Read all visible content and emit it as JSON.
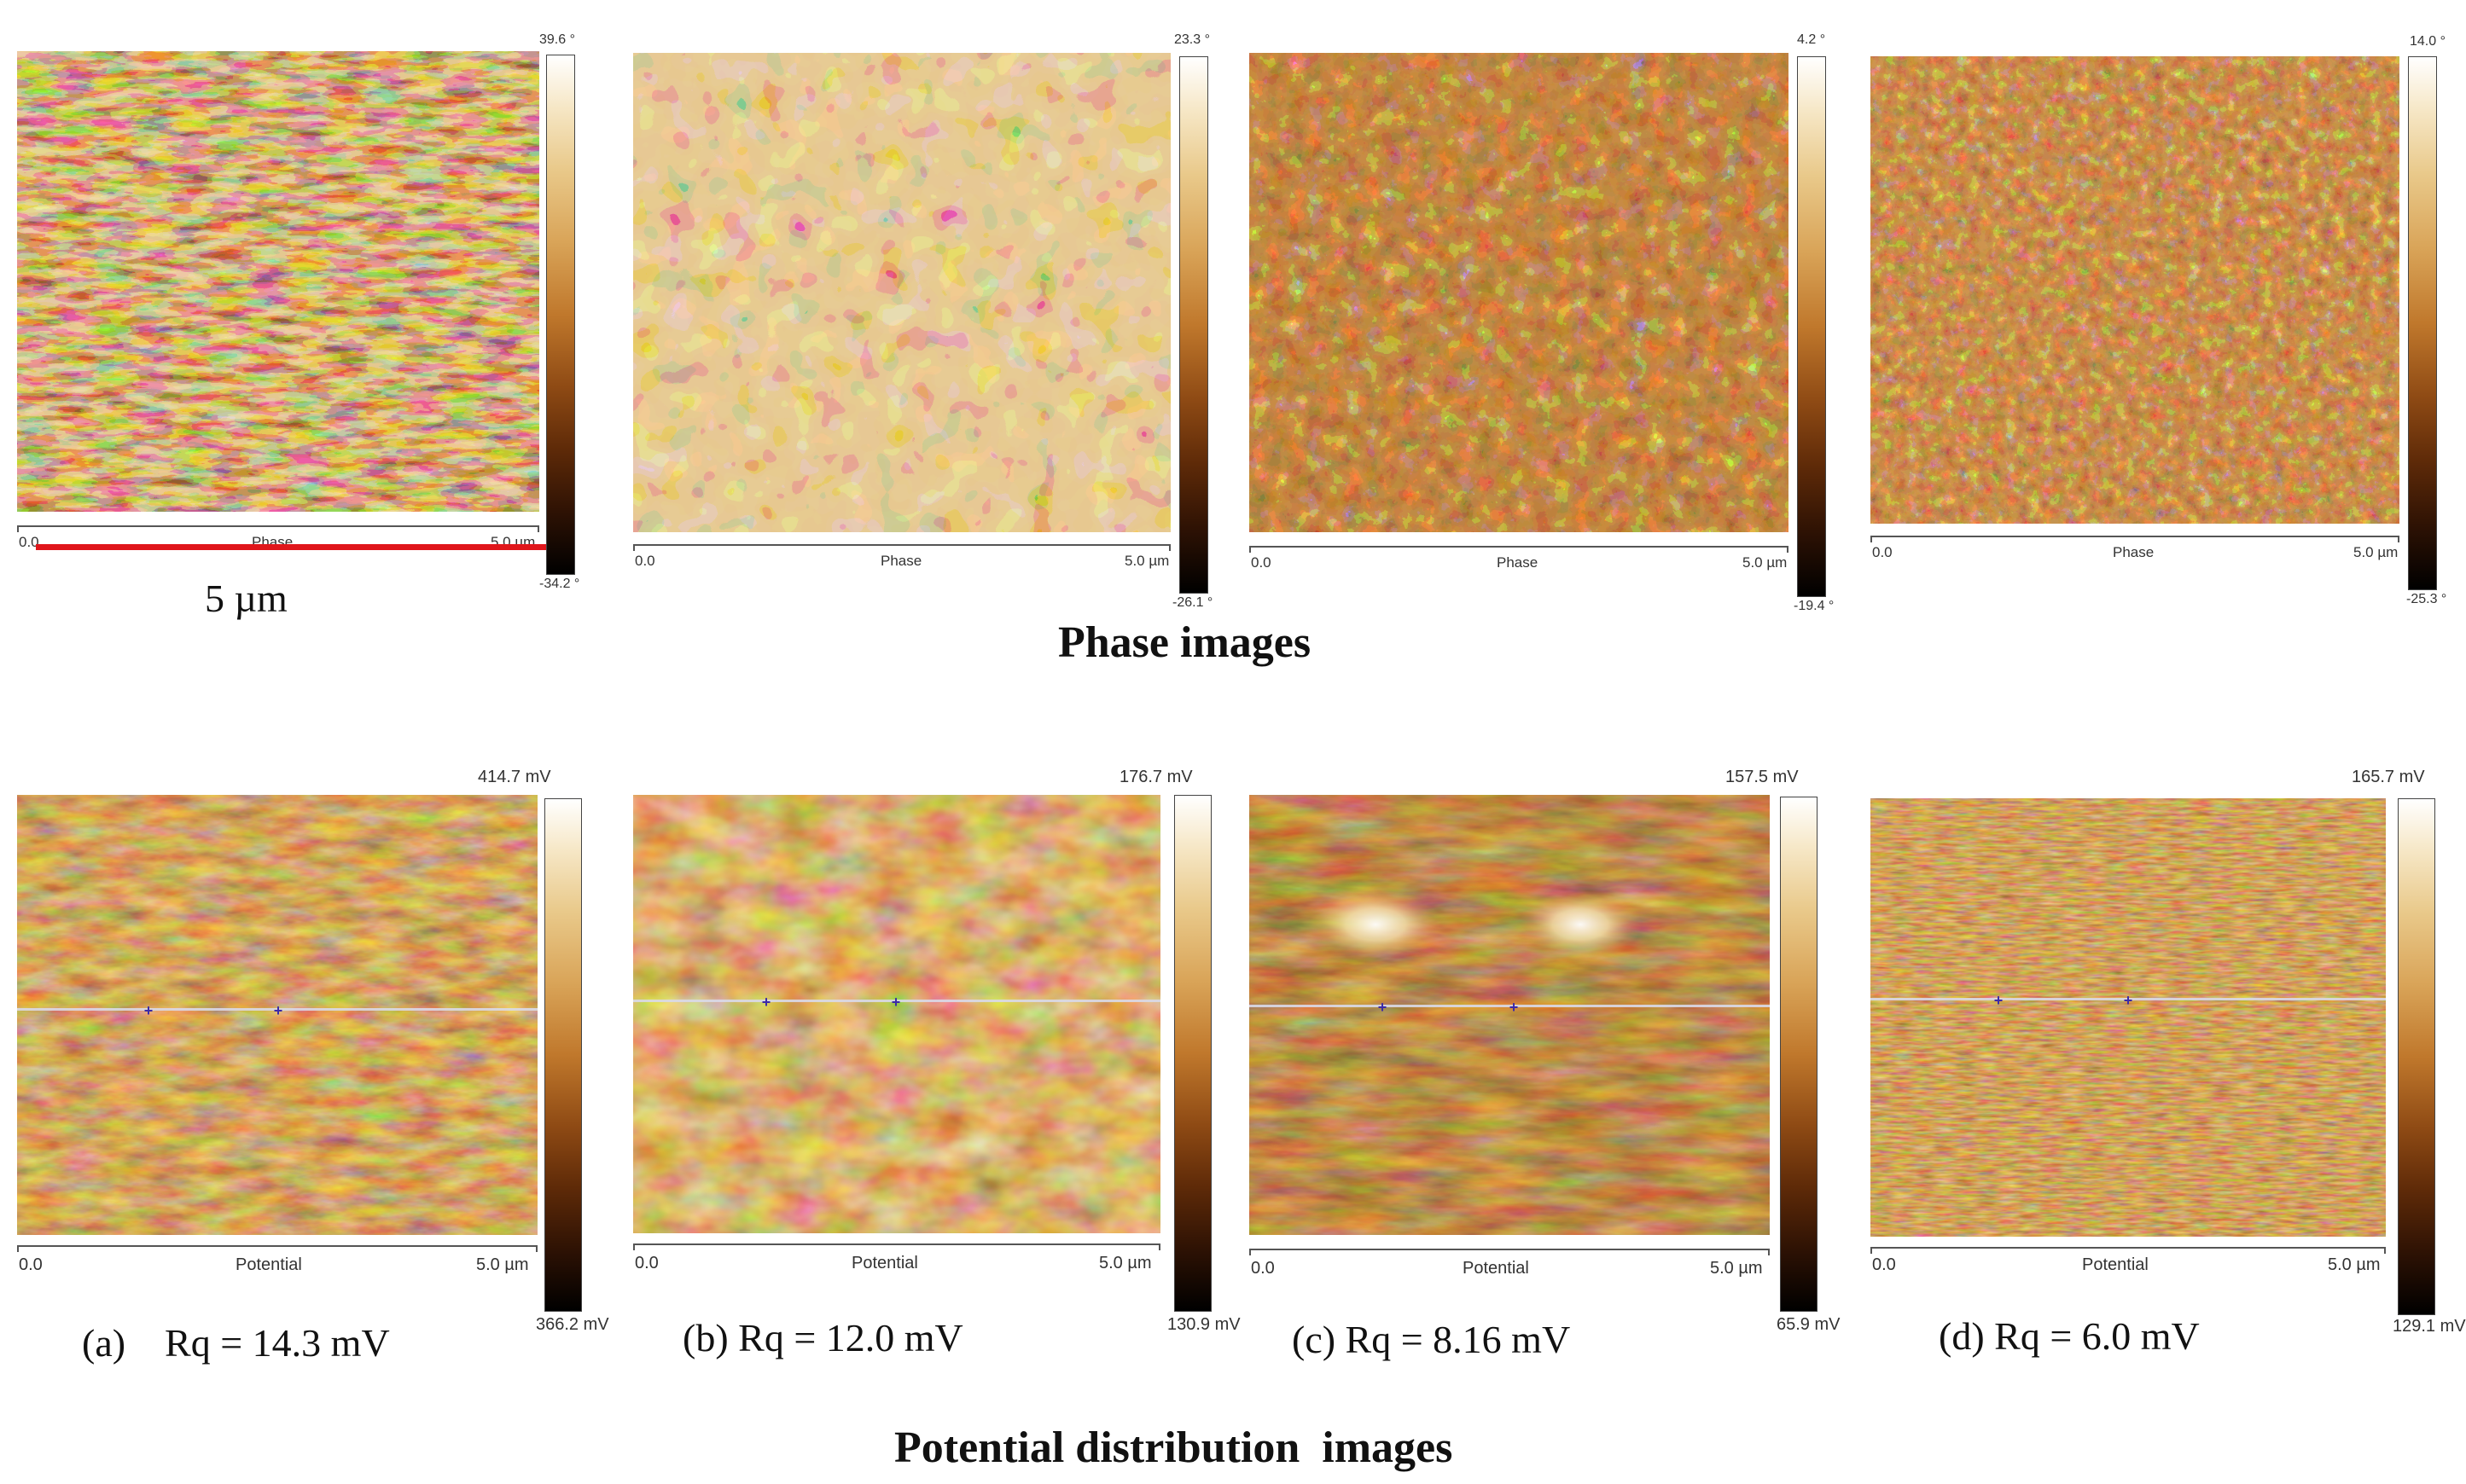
{
  "scale_bar_label": "5 µm",
  "section_titles": {
    "phase": "Phase images",
    "potential": "Potential distribution  images"
  },
  "phase_panels": [
    {
      "axis_start": "0.0",
      "axis_mid": "Phase",
      "axis_end": "5.0 µm",
      "cbar_max": "39.6 °",
      "cbar_min": "-34.2 °"
    },
    {
      "axis_start": "0.0",
      "axis_mid": "Phase",
      "axis_end": "5.0 µm",
      "cbar_max": "23.3 °",
      "cbar_min": "-26.1 °"
    },
    {
      "axis_start": "0.0",
      "axis_mid": "Phase",
      "axis_end": "5.0 µm",
      "cbar_max": "4.2 °",
      "cbar_min": "-19.4 °"
    },
    {
      "axis_start": "0.0",
      "axis_mid": "Phase",
      "axis_end": "5.0 µm",
      "cbar_max": "14.0 °",
      "cbar_min": "-25.3 °"
    }
  ],
  "potential_panels": [
    {
      "axis_start": "0.0",
      "axis_mid": "Potential",
      "axis_end": "5.0 µm",
      "cbar_max": "414.7 mV",
      "cbar_min": "366.2 mV",
      "caption": "(a)    Rq = 14.3 mV"
    },
    {
      "axis_start": "0.0",
      "axis_mid": "Potential",
      "axis_end": "5.0 µm",
      "cbar_max": "176.7 mV",
      "cbar_min": "130.9 mV",
      "caption": "(b) Rq = 12.0 mV"
    },
    {
      "axis_start": "0.0",
      "axis_mid": "Potential",
      "axis_end": "5.0 µm",
      "cbar_max": "157.5 mV",
      "cbar_min": "65.9 mV",
      "caption": "(c) Rq = 8.16 mV"
    },
    {
      "axis_start": "0.0",
      "axis_mid": "Potential",
      "axis_end": "5.0 µm",
      "cbar_max": "165.7 mV",
      "cbar_min": "129.1 mV",
      "caption": "(d) Rq = 6.0 mV"
    }
  ],
  "colors": {
    "scale_bar": "#e0161b",
    "afm_dark": "#3a1606",
    "afm_mid": "#a8561c",
    "afm_light": "#f3dfae"
  }
}
